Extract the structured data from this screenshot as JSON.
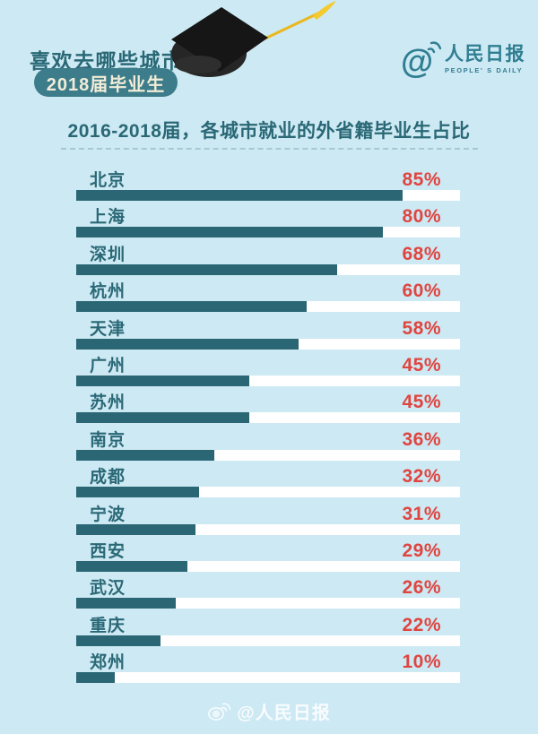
{
  "header": {
    "heading": "喜欢去哪些城市工作?",
    "badge": "2018届毕业生",
    "logo": {
      "name": "人民日报",
      "subtitle": "PEOPLE' S DAILY"
    }
  },
  "chart_data": {
    "type": "bar",
    "orientation": "horizontal",
    "title": "2016-2018届，各城市就业的外省籍毕业生占比",
    "categories": [
      "北京",
      "上海",
      "深圳",
      "杭州",
      "天津",
      "广州",
      "苏州",
      "南京",
      "成都",
      "宁波",
      "西安",
      "武汉",
      "重庆",
      "郑州"
    ],
    "values": [
      85,
      80,
      68,
      60,
      58,
      45,
      45,
      36,
      32,
      31,
      29,
      26,
      22,
      10
    ],
    "value_suffix": "%",
    "xlim": [
      0,
      100
    ],
    "grid": false,
    "legend": "none",
    "bar_color": "#2b6674",
    "track_color": "#ffffff",
    "value_color": "#e04540"
  },
  "footer": {
    "watermark": "@人民日报"
  },
  "colors": {
    "background": "#cde9f3",
    "teal_text": "#2a6876",
    "badge_bg": "#3d7c8a",
    "badge_text": "#f1ecd7",
    "accent_red": "#e04540",
    "logo_teal": "#2f7e92",
    "tassel_gold": "#eab81e"
  }
}
